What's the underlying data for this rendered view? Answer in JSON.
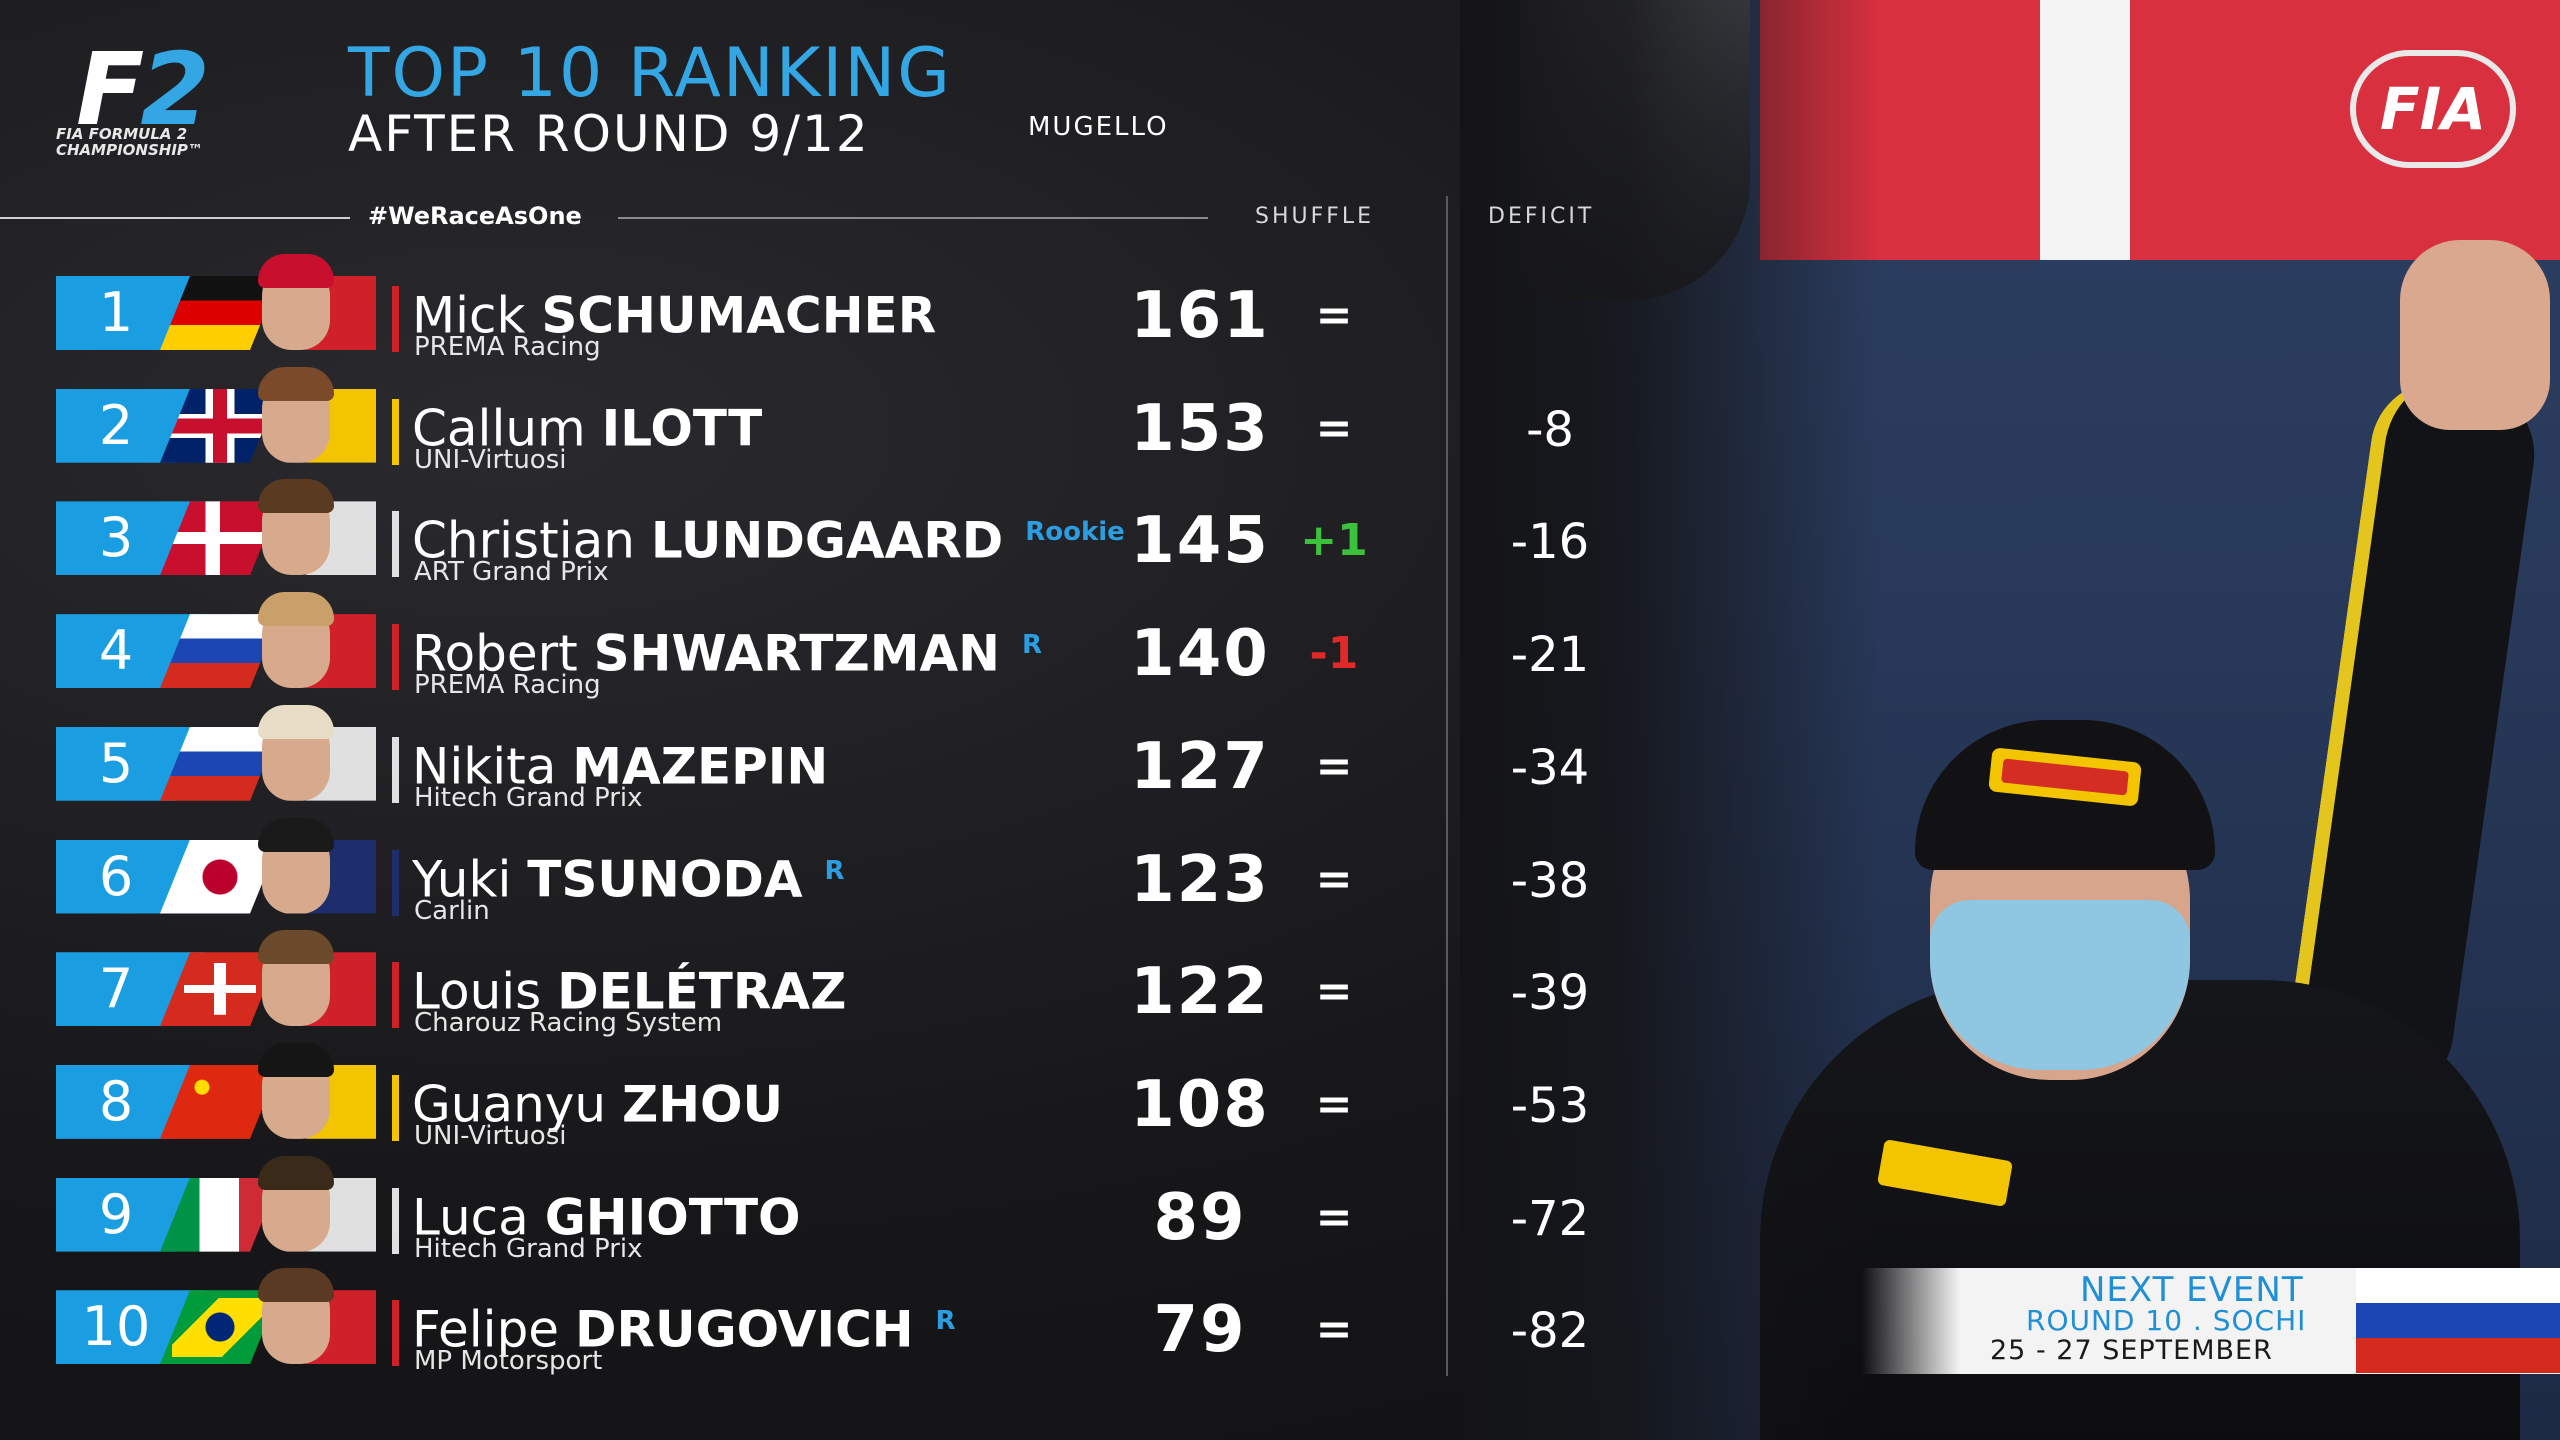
{
  "header": {
    "logo_main": "F2",
    "logo_sub_1": "FIA FORMULA 2",
    "logo_sub_2": "CHAMPIONSHIP™",
    "title": "TOP 10 RANKING",
    "subtitle": "AFTER ROUND 9/12",
    "location": "MUGELLO",
    "fia_logo": "FIA"
  },
  "columns": {
    "hashtag": "#WeRaceAsOne",
    "shuffle": "SHUFFLE",
    "deficit": "DEFICIT"
  },
  "colors": {
    "accent": "#1b9de2",
    "up": "#3cc13c",
    "down": "#e02a2a"
  },
  "rows": [
    {
      "pos": "1",
      "first": "Mick",
      "last": "SCHUMACHER",
      "rookie": "",
      "team": "PREMA Racing",
      "points": "161",
      "shuffle": "=",
      "deficit": "",
      "flag": "germany",
      "team_color": "#d0202a"
    },
    {
      "pos": "2",
      "first": "Callum",
      "last": "ILOTT",
      "rookie": "",
      "team": "UNI-Virtuosi",
      "points": "153",
      "shuffle": "=",
      "deficit": "-8",
      "flag": "uk",
      "team_color": "#f2c500"
    },
    {
      "pos": "3",
      "first": "Christian",
      "last": "LUNDGAARD",
      "rookie": "Rookie",
      "team": "ART Grand Prix",
      "points": "145",
      "shuffle": "+1",
      "deficit": "-16",
      "flag": "denmark",
      "team_color": "#e0e0e0"
    },
    {
      "pos": "4",
      "first": "Robert",
      "last": "SHWARTZMAN",
      "rookie": "R",
      "team": "PREMA Racing",
      "points": "140",
      "shuffle": "-1",
      "deficit": "-21",
      "flag": "russia",
      "team_color": "#d0202a"
    },
    {
      "pos": "5",
      "first": "Nikita",
      "last": "MAZEPIN",
      "rookie": "",
      "team": "Hitech Grand Prix",
      "points": "127",
      "shuffle": "=",
      "deficit": "-34",
      "flag": "russia",
      "team_color": "#e0e0e0"
    },
    {
      "pos": "6",
      "first": "Yuki",
      "last": "TSUNODA",
      "rookie": "R",
      "team": "Carlin",
      "points": "123",
      "shuffle": "=",
      "deficit": "-38",
      "flag": "japan",
      "team_color": "#1e2d6b"
    },
    {
      "pos": "7",
      "first": "Louis",
      "last": "DELÉTRAZ",
      "rookie": "",
      "team": "Charouz Racing System",
      "points": "122",
      "shuffle": "=",
      "deficit": "-39",
      "flag": "switzerland",
      "team_color": "#d0202a"
    },
    {
      "pos": "8",
      "first": "Guanyu",
      "last": "ZHOU",
      "rookie": "",
      "team": "UNI-Virtuosi",
      "points": "108",
      "shuffle": "=",
      "deficit": "-53",
      "flag": "china",
      "team_color": "#f2c500"
    },
    {
      "pos": "9",
      "first": "Luca",
      "last": "GHIOTTO",
      "rookie": "",
      "team": "Hitech Grand Prix",
      "points": "89",
      "shuffle": "=",
      "deficit": "-72",
      "flag": "italy",
      "team_color": "#e0e0e0"
    },
    {
      "pos": "10",
      "first": "Felipe",
      "last": "DRUGOVICH",
      "rookie": "R",
      "team": "MP Motorsport",
      "points": "79",
      "shuffle": "=",
      "deficit": "-82",
      "flag": "brazil",
      "team_color": "#d0202a"
    }
  ],
  "next_event": {
    "label": "NEXT EVENT",
    "round": "ROUND 10 . SOCHI",
    "dates": "25 - 27 SEPTEMBER",
    "flag": "russia"
  }
}
